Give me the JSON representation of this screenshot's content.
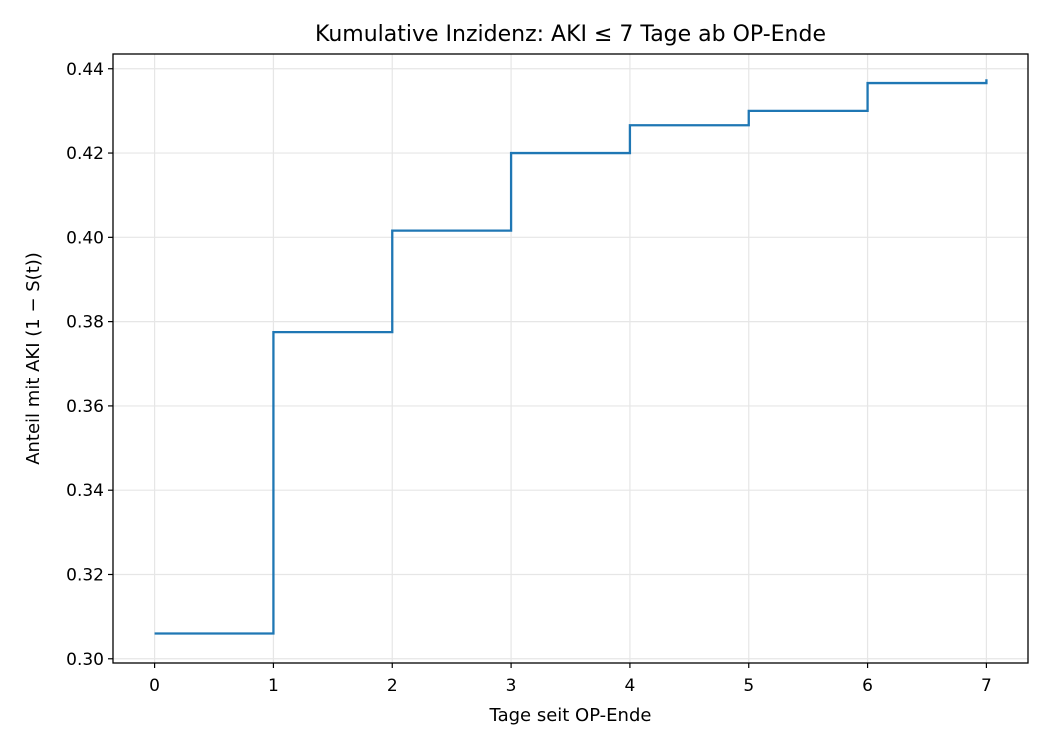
{
  "chart_data": {
    "type": "line",
    "step": "post",
    "title": "Kumulative Inzidenz: AKI ≤ 7 Tage ab OP-Ende",
    "xlabel": "Tage seit OP-Ende",
    "ylabel": "Anteil mit AKI (1 − S(t))",
    "xlim": [
      -0.35,
      7.35
    ],
    "ylim": [
      0.299,
      0.4435
    ],
    "x_ticks": [
      0,
      1,
      2,
      3,
      4,
      5,
      6,
      7
    ],
    "x_tick_labels": [
      "0",
      "1",
      "2",
      "3",
      "4",
      "5",
      "6",
      "7"
    ],
    "y_ticks": [
      0.3,
      0.32,
      0.34,
      0.36,
      0.38,
      0.4,
      0.42,
      0.44
    ],
    "y_tick_labels": [
      "0.30",
      "0.32",
      "0.34",
      "0.36",
      "0.38",
      "0.40",
      "0.42",
      "0.44"
    ],
    "grid": true,
    "color": "#1f77b4",
    "series": [
      {
        "x": [
          0,
          1,
          2,
          3,
          4,
          5,
          6,
          7
        ],
        "y": [
          0.306,
          0.3775,
          0.4016,
          0.42,
          0.4266,
          0.43,
          0.4366,
          0.4375
        ]
      }
    ]
  }
}
